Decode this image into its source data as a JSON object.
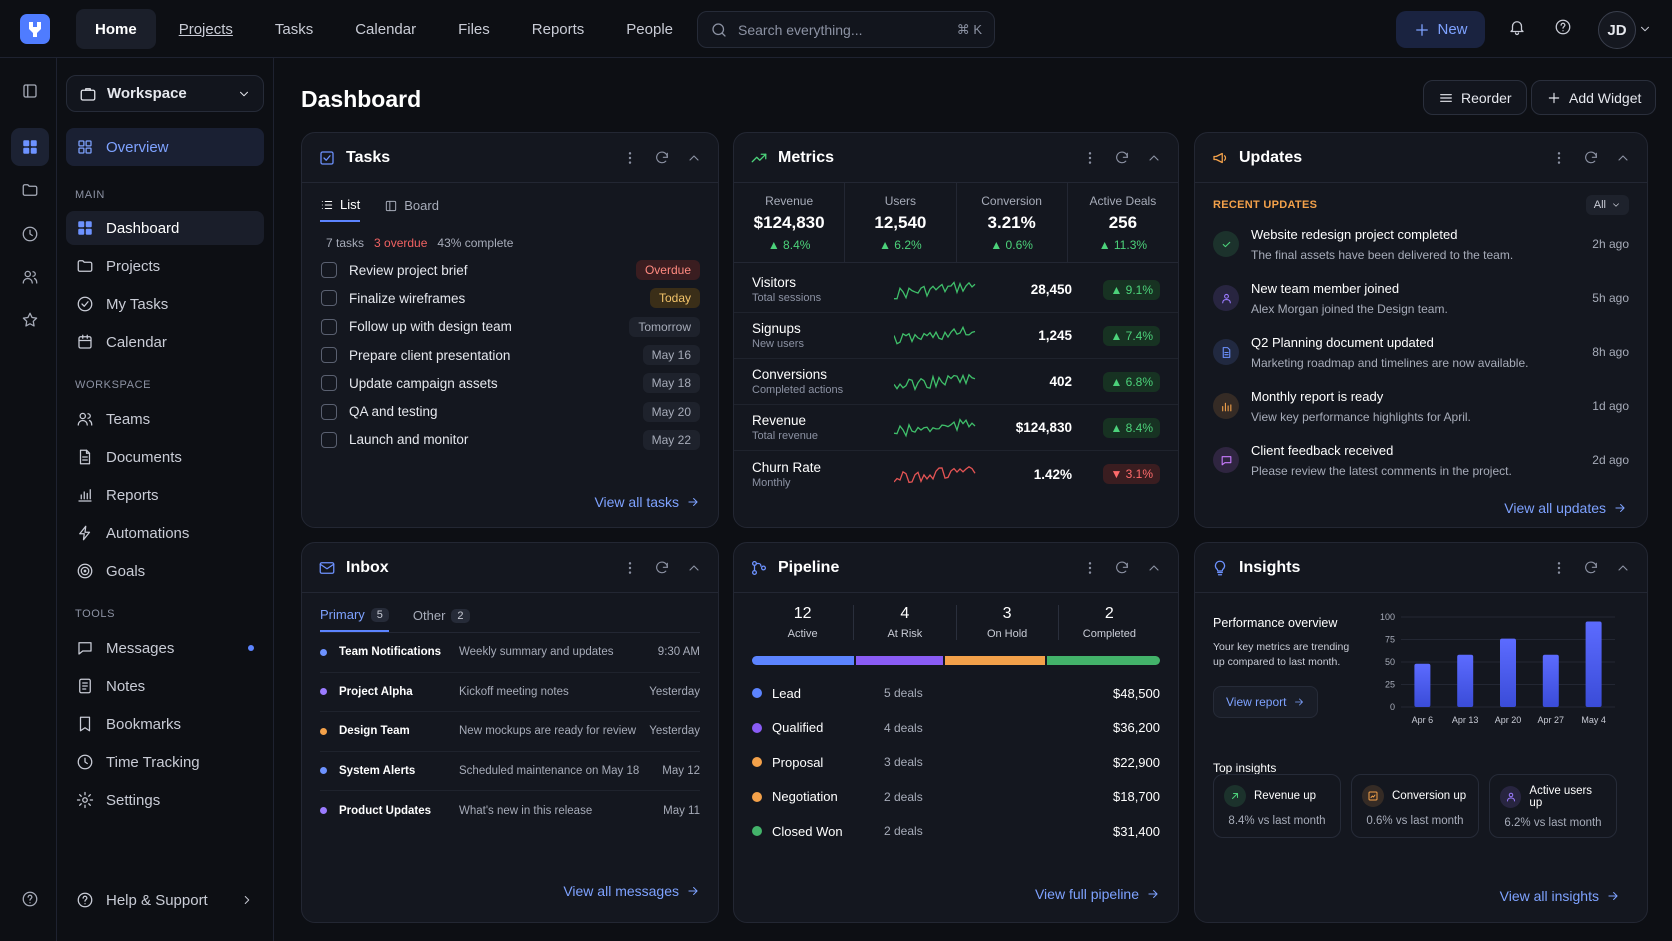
{
  "topnav": {
    "items": [
      "Home",
      "Projects",
      "Tasks",
      "Calendar",
      "Files",
      "Reports",
      "People"
    ]
  },
  "search": {
    "placeholder": "Search everything...",
    "shortcut": "⌘ K"
  },
  "new_label": "New",
  "user_initials": "JD",
  "workspace": "Workspace",
  "sidebar": {
    "overview": "Overview",
    "main_header": "MAIN",
    "main": [
      "Dashboard",
      "Projects",
      "My Tasks",
      "Calendar"
    ],
    "workspace_header": "WORKSPACE",
    "workspace": [
      "Teams",
      "Documents",
      "Reports",
      "Automations",
      "Goals"
    ],
    "tools_header": "TOOLS",
    "tools": [
      "Messages",
      "Notes",
      "Bookmarks",
      "Time Tracking",
      "Settings"
    ],
    "help": "Help & Support"
  },
  "page": {
    "title": "Dashboard",
    "reorder": "Reorder",
    "add_widget": "Add Widget"
  },
  "tasks": {
    "title": "Tasks",
    "tab_list": "List",
    "tab_board": "Board",
    "count": "7 tasks",
    "overdue": "3 overdue",
    "complete": "43% complete",
    "items": [
      {
        "label": "Review project brief",
        "due": "Overdue",
        "tone": "red"
      },
      {
        "label": "Finalize wireframes",
        "due": "Today",
        "tone": "yel"
      },
      {
        "label": "Follow up with design team",
        "due": "Tomorrow",
        "tone": ""
      },
      {
        "label": "Prepare client presentation",
        "due": "May 16",
        "tone": ""
      },
      {
        "label": "Update campaign assets",
        "due": "May 18",
        "tone": ""
      },
      {
        "label": "QA and testing",
        "due": "May 20",
        "tone": ""
      },
      {
        "label": "Launch and monitor",
        "due": "May 22",
        "tone": ""
      }
    ],
    "view_all": "View all tasks"
  },
  "metrics": {
    "title": "Metrics",
    "kpis": [
      {
        "label": "Revenue",
        "value": "$124,830",
        "delta": "8.4%"
      },
      {
        "label": "Users",
        "value": "12,540",
        "delta": "6.2%"
      },
      {
        "label": "Conversion",
        "value": "3.21%",
        "delta": "0.6%"
      },
      {
        "label": "Active Deals",
        "value": "256",
        "delta": "11.3%"
      }
    ],
    "rows": [
      {
        "name": "Visitors",
        "sub": "Total sessions",
        "value": "28,450",
        "delta": "9.1%",
        "up": true
      },
      {
        "name": "Signups",
        "sub": "New users",
        "value": "1,245",
        "delta": "7.4%",
        "up": true
      },
      {
        "name": "Conversions",
        "sub": "Completed actions",
        "value": "402",
        "delta": "6.8%",
        "up": true
      },
      {
        "name": "Revenue",
        "sub": "Total revenue",
        "value": "$124,830",
        "delta": "8.4%",
        "up": true
      },
      {
        "name": "Churn Rate",
        "sub": "Monthly",
        "value": "1.42%",
        "delta": "3.1%",
        "up": false
      }
    ]
  },
  "updates": {
    "title": "Updates",
    "section": "RECENT UPDATES",
    "filter": "All",
    "items": [
      {
        "title": "Website redesign project completed",
        "desc": "The final assets have been delivered to the team.",
        "time": "2h ago",
        "icon": "check-icon",
        "color": "#4cd27a"
      },
      {
        "title": "New team member joined",
        "desc": "Alex Morgan joined the Design team.",
        "time": "5h ago",
        "icon": "user-icon",
        "color": "#9b7bff"
      },
      {
        "title": "Q2 Planning document updated",
        "desc": "Marketing roadmap and timelines are now available.",
        "time": "8h ago",
        "icon": "document-icon",
        "color": "#6d92ff"
      },
      {
        "title": "Monthly report is ready",
        "desc": "View key performance highlights for April.",
        "time": "1d ago",
        "icon": "bar-chart-icon",
        "color": "#f3a14a"
      },
      {
        "title": "Client feedback received",
        "desc": "Please review the latest comments in the project.",
        "time": "2d ago",
        "icon": "chat-icon",
        "color": "#c97bff"
      }
    ],
    "view_all": "View all updates"
  },
  "inbox": {
    "title": "Inbox",
    "tab_primary": "Primary",
    "primary_count": "5",
    "tab_other": "Other",
    "other_count": "2",
    "items": [
      {
        "sender": "Team Notifications",
        "subject": "Weekly summary and updates",
        "when": "9:30 AM",
        "color": "#6d92ff"
      },
      {
        "sender": "Project Alpha",
        "subject": "Kickoff meeting notes",
        "when": "Yesterday",
        "color": "#9b7bff"
      },
      {
        "sender": "Design Team",
        "subject": "New mockups are ready for review",
        "when": "Yesterday",
        "color": "#f3a14a"
      },
      {
        "sender": "System Alerts",
        "subject": "Scheduled maintenance on May 18",
        "when": "May 12",
        "color": "#6d92ff"
      },
      {
        "sender": "Product Updates",
        "subject": "What's new in this release",
        "when": "May 11",
        "color": "#9b7bff"
      }
    ],
    "view_all": "View all messages"
  },
  "pipeline": {
    "title": "Pipeline",
    "stats": [
      {
        "value": "12",
        "label": "Active"
      },
      {
        "value": "4",
        "label": "At Risk"
      },
      {
        "value": "3",
        "label": "On Hold"
      },
      {
        "value": "2",
        "label": "Completed"
      }
    ],
    "stages": [
      {
        "name": "Lead",
        "deals": "5 deals",
        "amount": "$48,500",
        "color": "#5c84ff",
        "share": 0.255
      },
      {
        "name": "Qualified",
        "deals": "4 deals",
        "amount": "$36,200",
        "color": "#8a5cf5",
        "share": 0.22
      },
      {
        "name": "Proposal",
        "deals": "3 deals",
        "amount": "$22,900",
        "color": "#f3a14a",
        "share": 0.25
      },
      {
        "name": "Negotiation",
        "deals": "2 deals",
        "amount": "$18,700",
        "color": "#f3a14a",
        "share": 0
      },
      {
        "name": "Closed Won",
        "deals": "2 deals",
        "amount": "$31,400",
        "color": "#43b36a",
        "share": 0.285
      }
    ],
    "view_all": "View full pipeline"
  },
  "insights": {
    "title": "Insights",
    "overview_title": "Performance overview",
    "overview_desc": "Your key metrics are trending up compared to last month.",
    "view_report": "View report",
    "top": "Top insights",
    "boxes": [
      {
        "title": "Revenue up",
        "sub": "8.4% vs last month",
        "icon": "arrow-up-right-icon",
        "color": "#4cd27a"
      },
      {
        "title": "Conversion up",
        "sub": "0.6% vs last month",
        "icon": "chart-icon",
        "color": "#f3a14a"
      },
      {
        "title": "Active users up",
        "sub": "6.2% vs last month",
        "icon": "user-icon",
        "color": "#9b7bff"
      }
    ],
    "view_all": "View all insights"
  },
  "chart_data": {
    "type": "bar",
    "categories": [
      "Apr 6",
      "Apr 13",
      "Apr 20",
      "Apr 27",
      "May 4"
    ],
    "values": [
      48,
      58,
      76,
      58,
      95
    ],
    "ylim": [
      0,
      100
    ],
    "yticks": [
      "100",
      "75",
      "50",
      "25",
      "0"
    ],
    "title": "",
    "xlabel": "",
    "ylabel": ""
  }
}
